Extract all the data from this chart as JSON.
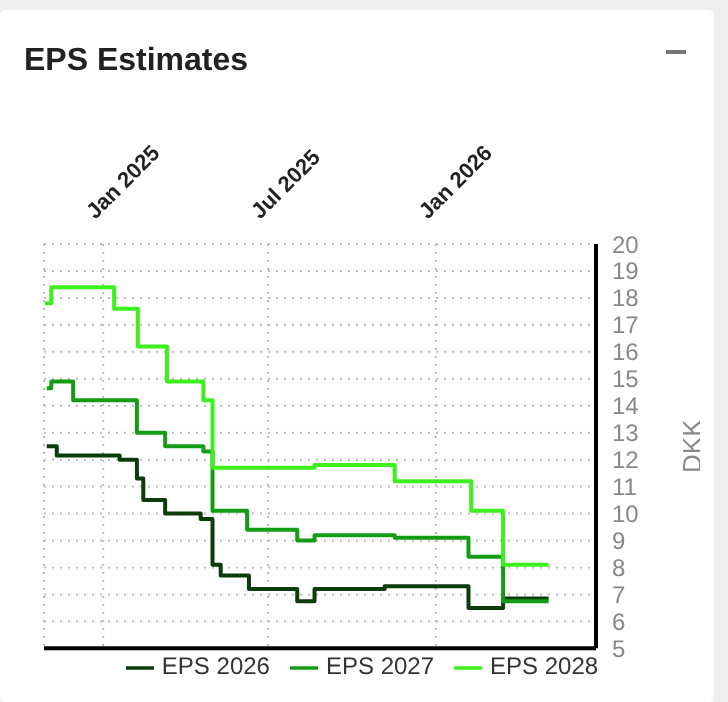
{
  "chart_data": {
    "type": "step",
    "title": "EPS Estimates",
    "ylabel": "DKK",
    "xlim": [
      "2024-10-28",
      "2026-06-26"
    ],
    "xticks": [
      {
        "value": "2025-01-01",
        "label": "Jan 2025"
      },
      {
        "value": "2025-07-01",
        "label": "Jul 2025"
      },
      {
        "value": "2026-01-01",
        "label": "Jan 2026"
      }
    ],
    "ylim": [
      5,
      20
    ],
    "yticks": [
      5,
      6,
      7,
      8,
      9,
      10,
      11,
      12,
      13,
      14,
      15,
      16,
      17,
      18,
      19,
      20
    ],
    "grid": true,
    "legend": "bottom",
    "marker": "none",
    "line_style": "solid",
    "series": [
      {
        "name": "EPS 2026",
        "color": "#0b3d0b",
        "x": [
          "2024-10-31",
          "2024-11-11",
          "2025-01-19",
          "2025-02-07",
          "2025-02-14",
          "2025-03-10",
          "2025-04-18",
          "2025-05-01",
          "2025-05-10",
          "2025-06-10",
          "2025-08-02",
          "2025-08-21",
          "2025-11-06",
          "2026-02-06",
          "2026-03-16",
          "2026-05-05"
        ],
        "values": [
          12.5,
          12.15,
          12.0,
          11.3,
          10.5,
          10.0,
          9.8,
          8.1,
          7.7,
          7.2,
          6.75,
          7.2,
          7.3,
          6.5,
          6.85,
          6.85
        ]
      },
      {
        "name": "EPS 2027",
        "color": "#149c14",
        "x": [
          "2024-10-31",
          "2024-11-05",
          "2024-11-29",
          "2025-02-07",
          "2025-03-10",
          "2025-04-21",
          "2025-05-01",
          "2025-06-08",
          "2025-08-02",
          "2025-08-21",
          "2025-11-17",
          "2026-02-06",
          "2026-03-16",
          "2026-05-05"
        ],
        "values": [
          14.65,
          14.9,
          14.2,
          13.0,
          12.5,
          12.3,
          10.1,
          9.4,
          9.0,
          9.2,
          9.1,
          8.4,
          6.75,
          6.75
        ]
      },
      {
        "name": "EPS 2028",
        "color": "#3cf01c",
        "x": [
          "2024-10-29",
          "2024-11-05",
          "2025-01-13",
          "2025-02-08",
          "2025-03-12",
          "2025-04-21",
          "2025-05-01",
          "2025-08-21",
          "2025-11-17",
          "2026-02-02",
          "2026-02-09",
          "2026-03-16",
          "2026-05-05"
        ],
        "values": [
          17.8,
          18.4,
          17.6,
          16.2,
          14.9,
          14.2,
          11.7,
          11.8,
          11.2,
          11.2,
          10.1,
          8.1,
          8.1
        ]
      }
    ]
  }
}
